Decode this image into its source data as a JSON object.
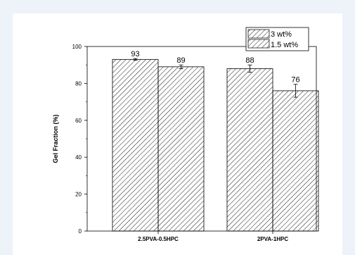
{
  "chart_data": {
    "type": "bar",
    "categories": [
      "2.5PVA-0.5HPC",
      "2PVA-1HPC"
    ],
    "series": [
      {
        "name": "3 wt%",
        "values": [
          93,
          88
        ],
        "errors": [
          0.5,
          2
        ],
        "labels": [
          "93",
          "88"
        ]
      },
      {
        "name": "1.5 wt%",
        "values": [
          89,
          76
        ],
        "errors": [
          1,
          3.5
        ],
        "labels": [
          "89",
          "76"
        ]
      }
    ],
    "xlabel": "",
    "ylabel": "Gel Fraction (%)",
    "ylim": [
      0,
      100
    ],
    "yticks": [
      "0",
      "20",
      "40",
      "60",
      "80",
      "100"
    ],
    "legend_position": "top-right",
    "grid": false,
    "fill_pattern": "diagonal-hatch"
  }
}
